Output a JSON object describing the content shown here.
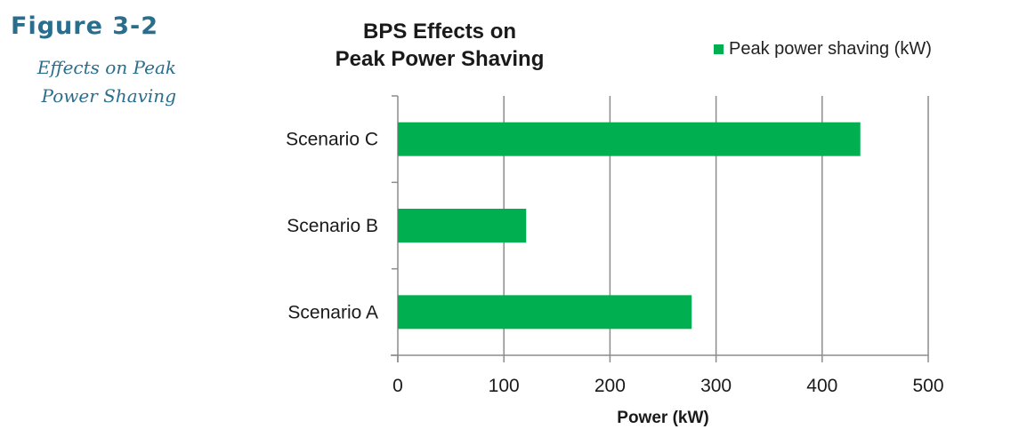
{
  "figure": {
    "label": "Figure 3-2",
    "caption_line1": "Effects on Peak",
    "caption_line2": "Power Shaving"
  },
  "chart_data": {
    "type": "bar",
    "orientation": "horizontal",
    "title_line1": "BPS Effects on",
    "title_line2": "Peak Power Shaving",
    "categories": [
      "Scenario A",
      "Scenario B",
      "Scenario C"
    ],
    "series": [
      {
        "name": "Peak power shaving (kW)",
        "values": [
          277,
          121,
          436
        ],
        "color": "#00b050"
      }
    ],
    "xlabel": "Power (kW)",
    "ylabel": "",
    "xlim": [
      0,
      500
    ],
    "xticks": [
      0,
      100,
      200,
      300,
      400,
      500
    ],
    "grid": true,
    "legend_position": "top-right"
  }
}
